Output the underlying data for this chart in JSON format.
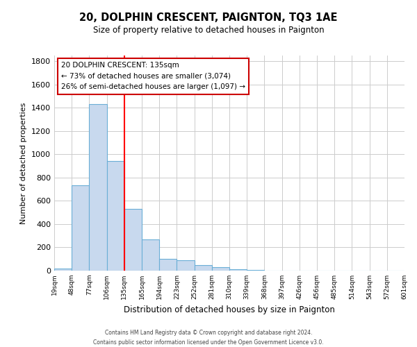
{
  "title": "20, DOLPHIN CRESCENT, PAIGNTON, TQ3 1AE",
  "subtitle": "Size of property relative to detached houses in Paignton",
  "xlabel": "Distribution of detached houses by size in Paignton",
  "ylabel": "Number of detached properties",
  "bin_labels": [
    "19sqm",
    "48sqm",
    "77sqm",
    "106sqm",
    "135sqm",
    "165sqm",
    "194sqm",
    "223sqm",
    "252sqm",
    "281sqm",
    "310sqm",
    "339sqm",
    "368sqm",
    "397sqm",
    "426sqm",
    "456sqm",
    "485sqm",
    "514sqm",
    "543sqm",
    "572sqm",
    "601sqm"
  ],
  "bar_values": [
    20,
    735,
    1430,
    940,
    530,
    270,
    103,
    90,
    50,
    28,
    12,
    3,
    1,
    0,
    0,
    0,
    0,
    0,
    0,
    0
  ],
  "bar_color": "#c8d9ee",
  "bar_edge_color": "#6aaed6",
  "vline_x_index": 4,
  "vline_color": "red",
  "ylim": [
    0,
    1850
  ],
  "yticks": [
    0,
    200,
    400,
    600,
    800,
    1000,
    1200,
    1400,
    1600,
    1800
  ],
  "annotation_title": "20 DOLPHIN CRESCENT: 135sqm",
  "annotation_line1": "← 73% of detached houses are smaller (3,074)",
  "annotation_line2": "26% of semi-detached houses are larger (1,097) →",
  "annotation_box_color": "#ffffff",
  "annotation_box_edge": "#cc0000",
  "footer1": "Contains HM Land Registry data © Crown copyright and database right 2024.",
  "footer2": "Contains public sector information licensed under the Open Government Licence v3.0.",
  "background_color": "#ffffff",
  "grid_color": "#cccccc"
}
